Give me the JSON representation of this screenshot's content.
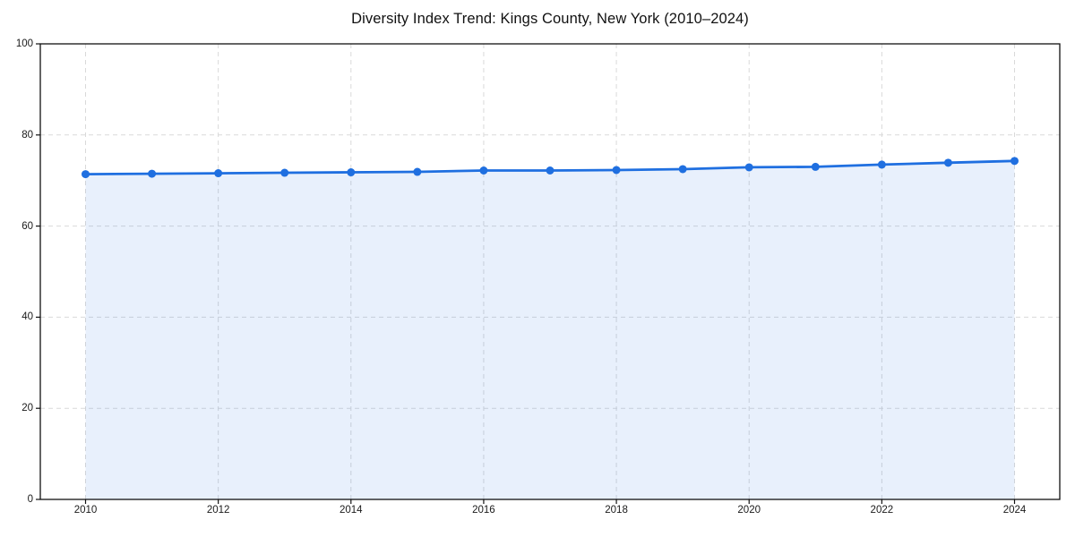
{
  "chart_data": {
    "type": "line",
    "title": "Diversity Index Trend: Kings County, New York (2010–2024)",
    "x": [
      2010,
      2011,
      2012,
      2013,
      2014,
      2015,
      2016,
      2017,
      2018,
      2019,
      2020,
      2021,
      2022,
      2023,
      2024
    ],
    "series": [
      {
        "name": "Diversity Index",
        "values": [
          71.4,
          71.5,
          71.6,
          71.7,
          71.8,
          71.9,
          72.2,
          72.2,
          72.3,
          72.5,
          72.9,
          73.0,
          73.5,
          73.9,
          74.3
        ]
      }
    ],
    "xlabel": "",
    "ylabel": "",
    "ylim": [
      0,
      100
    ],
    "yticks": [
      0,
      20,
      40,
      60,
      80,
      100
    ],
    "xticks": [
      2010,
      2012,
      2014,
      2016,
      2018,
      2020,
      2022,
      2024
    ],
    "grid": true,
    "grid_style": "dashed",
    "legend_position": "none",
    "line_color": "#1f6fe0",
    "marker": "circle",
    "area_fill": true,
    "area_opacity": 0.1,
    "grid_color": "#d9d9d9",
    "spine_color": "#111111",
    "background_color": "#ffffff"
  }
}
